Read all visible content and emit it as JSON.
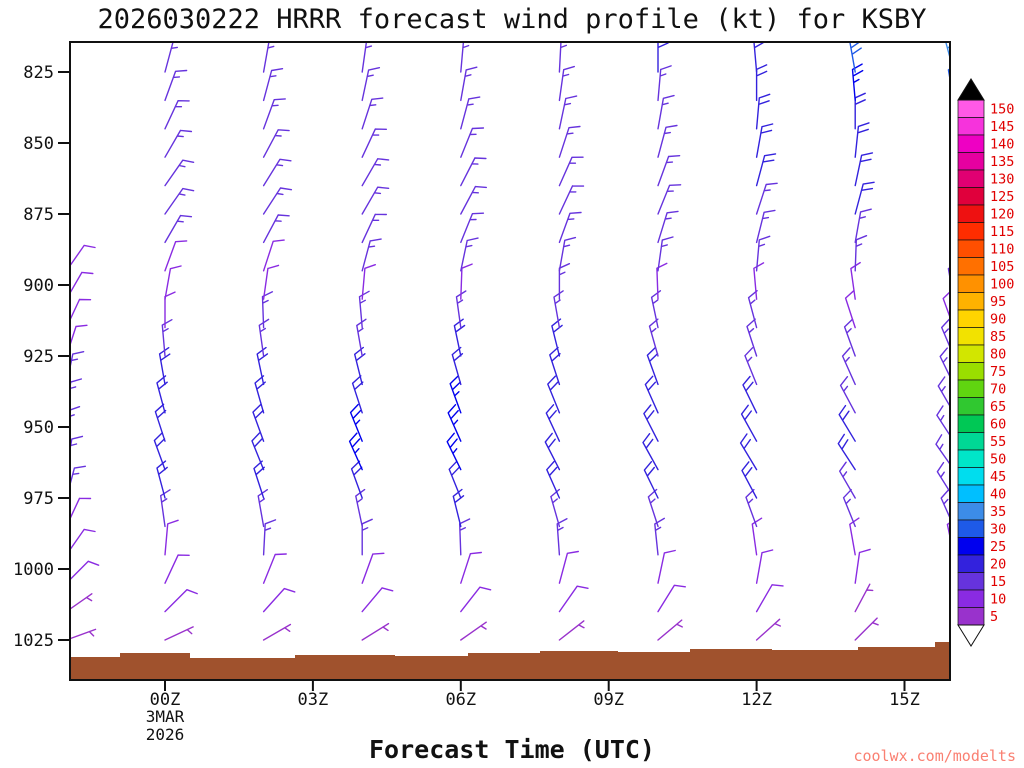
{
  "title": "2026030222 HRRR forecast wind profile (kt) for KSBY",
  "xlabel": "Forecast Time (UTC)",
  "watermark": "coolwx.com/modelts",
  "chart_data": {
    "type": "wind-profile",
    "model": "HRRR",
    "run": "2026030222",
    "station": "KSBY",
    "units": "kt",
    "y_axis": {
      "label_values": [
        825,
        850,
        875,
        900,
        925,
        950,
        975,
        1000,
        1025
      ],
      "top_mb": 814,
      "bottom_mb": 1039
    },
    "x_axis": {
      "tick_labels": [
        "00Z",
        "03Z",
        "06Z",
        "09Z",
        "12Z",
        "15Z"
      ],
      "tick_hours": [
        0,
        3,
        6,
        9,
        12,
        15
      ],
      "date_under_first_tick": [
        "3MAR",
        "2026"
      ]
    },
    "colorbar": {
      "values": [
        5,
        10,
        15,
        20,
        25,
        30,
        35,
        40,
        45,
        50,
        55,
        60,
        65,
        70,
        75,
        80,
        85,
        90,
        95,
        100,
        105,
        110,
        115,
        120,
        125,
        130,
        135,
        140,
        145,
        150
      ],
      "colors": [
        "#9932CC",
        "#8A2BE2",
        "#6633DD",
        "#3322DD",
        "#0000EE",
        "#1E5AE8",
        "#3C8CE8",
        "#00BFFF",
        "#00DDEE",
        "#00E6C8",
        "#00D895",
        "#00C855",
        "#30C830",
        "#60D510",
        "#9ADE00",
        "#D2E600",
        "#F2E200",
        "#FFD400",
        "#FFB200",
        "#FF9100",
        "#FF7000",
        "#FF4F00",
        "#FF2D00",
        "#EE1111",
        "#E0003C",
        "#E00072",
        "#E600A0",
        "#EE00C3",
        "#F633DC",
        "#FF59E6"
      ],
      "label_color": "#E00000",
      "over_arrow_color": "#000000",
      "under_arrow_color": "#FFFFFF"
    },
    "terrain": {
      "color": "#A0522D",
      "segments": [
        [
          70,
          120,
          657
        ],
        [
          120,
          190,
          653
        ],
        [
          190,
          295,
          658
        ],
        [
          295,
          395,
          655
        ],
        [
          395,
          468,
          656
        ],
        [
          468,
          540,
          653
        ],
        [
          540,
          618,
          651
        ],
        [
          618,
          690,
          652
        ],
        [
          690,
          772,
          649
        ],
        [
          772,
          858,
          650
        ],
        [
          858,
          935,
          647
        ],
        [
          935,
          950,
          642
        ]
      ]
    },
    "columns": [
      {
        "hour": -2,
        "barbs": [
          [
            1025,
            5,
            70
          ],
          [
            1015,
            7,
            55
          ],
          [
            1005,
            8,
            45
          ],
          [
            995,
            10,
            35
          ],
          [
            985,
            12,
            25
          ],
          [
            975,
            14,
            15
          ],
          [
            965,
            15,
            10
          ],
          [
            955,
            15,
            5
          ],
          [
            945,
            15,
            8
          ],
          [
            935,
            13,
            12
          ],
          [
            925,
            12,
            18
          ],
          [
            915,
            10,
            25
          ],
          [
            905,
            10,
            30
          ],
          [
            895,
            10,
            35
          ]
        ]
      },
      {
        "hour": 0,
        "barbs": [
          [
            1025,
            5,
            65
          ],
          [
            1015,
            8,
            45
          ],
          [
            1005,
            10,
            25
          ],
          [
            995,
            12,
            5
          ],
          [
            985,
            15,
            352
          ],
          [
            975,
            18,
            345
          ],
          [
            965,
            20,
            340
          ],
          [
            955,
            20,
            342
          ],
          [
            945,
            20,
            345
          ],
          [
            935,
            18,
            350
          ],
          [
            925,
            15,
            355
          ],
          [
            915,
            12,
            0
          ],
          [
            905,
            10,
            10
          ],
          [
            895,
            12,
            20
          ],
          [
            885,
            14,
            30
          ],
          [
            875,
            15,
            35
          ],
          [
            865,
            15,
            35
          ],
          [
            855,
            15,
            30
          ],
          [
            845,
            13,
            25
          ],
          [
            835,
            13,
            20
          ],
          [
            825,
            15,
            15
          ]
        ]
      },
      {
        "hour": 2,
        "barbs": [
          [
            1025,
            6,
            60
          ],
          [
            1015,
            8,
            42
          ],
          [
            1005,
            10,
            22
          ],
          [
            995,
            13,
            3
          ],
          [
            985,
            16,
            350
          ],
          [
            975,
            20,
            342
          ],
          [
            965,
            22,
            338
          ],
          [
            955,
            22,
            340
          ],
          [
            945,
            21,
            344
          ],
          [
            935,
            19,
            348
          ],
          [
            925,
            16,
            352
          ],
          [
            915,
            13,
            358
          ],
          [
            905,
            11,
            8
          ],
          [
            895,
            12,
            18
          ],
          [
            885,
            14,
            28
          ],
          [
            875,
            15,
            33
          ],
          [
            865,
            16,
            32
          ],
          [
            855,
            15,
            28
          ],
          [
            845,
            14,
            20
          ],
          [
            835,
            14,
            15
          ],
          [
            825,
            15,
            10
          ]
        ]
      },
      {
        "hour": 4,
        "barbs": [
          [
            1025,
            6,
            58
          ],
          [
            1015,
            9,
            40
          ],
          [
            1005,
            11,
            20
          ],
          [
            995,
            14,
            0
          ],
          [
            985,
            17,
            348
          ],
          [
            975,
            21,
            340
          ],
          [
            965,
            23,
            336
          ],
          [
            955,
            23,
            338
          ],
          [
            945,
            22,
            342
          ],
          [
            935,
            20,
            346
          ],
          [
            925,
            17,
            350
          ],
          [
            915,
            14,
            355
          ],
          [
            905,
            12,
            5
          ],
          [
            895,
            13,
            15
          ],
          [
            885,
            15,
            25
          ],
          [
            875,
            16,
            30
          ],
          [
            865,
            16,
            30
          ],
          [
            855,
            16,
            25
          ],
          [
            845,
            15,
            18
          ],
          [
            835,
            15,
            12
          ],
          [
            825,
            16,
            8
          ]
        ]
      },
      {
        "hour": 6,
        "barbs": [
          [
            1025,
            6,
            55
          ],
          [
            1015,
            9,
            38
          ],
          [
            1005,
            11,
            18
          ],
          [
            995,
            14,
            358
          ],
          [
            985,
            18,
            346
          ],
          [
            975,
            22,
            338
          ],
          [
            965,
            24,
            334
          ],
          [
            955,
            24,
            336
          ],
          [
            945,
            23,
            340
          ],
          [
            935,
            21,
            344
          ],
          [
            925,
            18,
            348
          ],
          [
            915,
            15,
            352
          ],
          [
            905,
            12,
            2
          ],
          [
            895,
            13,
            12
          ],
          [
            885,
            15,
            22
          ],
          [
            875,
            16,
            28
          ],
          [
            865,
            17,
            27
          ],
          [
            855,
            17,
            22
          ],
          [
            845,
            16,
            15
          ],
          [
            835,
            16,
            10
          ],
          [
            825,
            16,
            5
          ]
        ]
      },
      {
        "hour": 8,
        "barbs": [
          [
            1025,
            6,
            52
          ],
          [
            1015,
            9,
            35
          ],
          [
            1005,
            11,
            15
          ],
          [
            995,
            14,
            356
          ],
          [
            985,
            17,
            344
          ],
          [
            975,
            20,
            336
          ],
          [
            965,
            22,
            333
          ],
          [
            955,
            22,
            335
          ],
          [
            945,
            22,
            338
          ],
          [
            935,
            20,
            342
          ],
          [
            925,
            18,
            346
          ],
          [
            915,
            15,
            350
          ],
          [
            905,
            13,
            0
          ],
          [
            895,
            14,
            10
          ],
          [
            885,
            15,
            20
          ],
          [
            875,
            16,
            25
          ],
          [
            865,
            17,
            24
          ],
          [
            855,
            17,
            18
          ],
          [
            845,
            16,
            12
          ],
          [
            835,
            16,
            8
          ],
          [
            825,
            17,
            3
          ]
        ]
      },
      {
        "hour": 10,
        "barbs": [
          [
            1025,
            5,
            50
          ],
          [
            1015,
            8,
            32
          ],
          [
            1005,
            10,
            12
          ],
          [
            995,
            13,
            354
          ],
          [
            985,
            16,
            342
          ],
          [
            975,
            19,
            334
          ],
          [
            965,
            20,
            331
          ],
          [
            955,
            21,
            333
          ],
          [
            945,
            21,
            336
          ],
          [
            935,
            19,
            340
          ],
          [
            925,
            17,
            344
          ],
          [
            915,
            14,
            348
          ],
          [
            905,
            12,
            358
          ],
          [
            895,
            13,
            8
          ],
          [
            885,
            15,
            17
          ],
          [
            875,
            16,
            22
          ],
          [
            865,
            17,
            20
          ],
          [
            855,
            17,
            15
          ],
          [
            845,
            17,
            10
          ],
          [
            835,
            17,
            5
          ],
          [
            825,
            18,
            0
          ]
        ]
      },
      {
        "hour": 12,
        "barbs": [
          [
            1025,
            5,
            48
          ],
          [
            1015,
            8,
            30
          ],
          [
            1005,
            10,
            10
          ],
          [
            995,
            12,
            352
          ],
          [
            985,
            15,
            340
          ],
          [
            975,
            18,
            332
          ],
          [
            965,
            20,
            329
          ],
          [
            955,
            20,
            331
          ],
          [
            945,
            19,
            334
          ],
          [
            935,
            17,
            338
          ],
          [
            925,
            15,
            342
          ],
          [
            915,
            13,
            345
          ],
          [
            905,
            12,
            355
          ],
          [
            895,
            13,
            5
          ],
          [
            885,
            15,
            14
          ],
          [
            875,
            17,
            18
          ],
          [
            865,
            18,
            15
          ],
          [
            855,
            18,
            10
          ],
          [
            845,
            19,
            5
          ],
          [
            835,
            20,
            0
          ],
          [
            825,
            22,
            355
          ]
        ]
      },
      {
        "hour": 14,
        "barbs": [
          [
            1025,
            5,
            45
          ],
          [
            1015,
            7,
            28
          ],
          [
            1005,
            9,
            8
          ],
          [
            995,
            11,
            350
          ],
          [
            985,
            14,
            338
          ],
          [
            975,
            16,
            330
          ],
          [
            965,
            18,
            327
          ],
          [
            955,
            18,
            329
          ],
          [
            945,
            17,
            332
          ],
          [
            935,
            15,
            336
          ],
          [
            925,
            13,
            340
          ],
          [
            915,
            12,
            342
          ],
          [
            905,
            12,
            352
          ],
          [
            895,
            14,
            2
          ],
          [
            885,
            16,
            10
          ],
          [
            875,
            18,
            15
          ],
          [
            865,
            19,
            12
          ],
          [
            855,
            20,
            6
          ],
          [
            845,
            22,
            0
          ],
          [
            835,
            25,
            355
          ],
          [
            825,
            28,
            350
          ]
        ]
      },
      {
        "hour": 16,
        "barbs": [
          [
            1025,
            5,
            42
          ],
          [
            1015,
            7,
            25
          ],
          [
            1005,
            9,
            5
          ],
          [
            995,
            11,
            348
          ],
          [
            985,
            13,
            336
          ],
          [
            975,
            15,
            328
          ],
          [
            965,
            17,
            325
          ],
          [
            955,
            17,
            327
          ],
          [
            945,
            16,
            330
          ],
          [
            935,
            14,
            334
          ],
          [
            925,
            13,
            337
          ],
          [
            915,
            12,
            340
          ],
          [
            905,
            13,
            350
          ],
          [
            895,
            15,
            0
          ],
          [
            885,
            18,
            8
          ],
          [
            875,
            20,
            12
          ],
          [
            865,
            22,
            8
          ],
          [
            855,
            24,
            2
          ],
          [
            845,
            27,
            355
          ],
          [
            835,
            30,
            350
          ],
          [
            825,
            34,
            345
          ]
        ]
      }
    ]
  }
}
